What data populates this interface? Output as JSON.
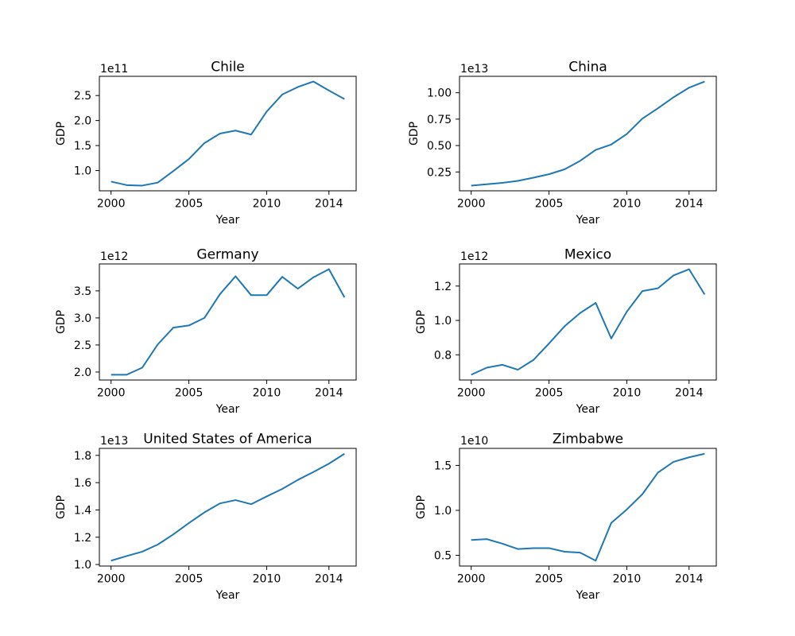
{
  "figure": {
    "background": "#ffffff",
    "line_color": "#1f77b4",
    "spine_color": "#000000",
    "text_color": "#000000",
    "grid": "off",
    "legend": "none",
    "rows": 3,
    "cols": 2
  },
  "chart_data": [
    {
      "type": "line",
      "title": "Chile",
      "xlabel": "Year",
      "ylabel": "GDP",
      "y_offset_label": "1e11",
      "row": 0,
      "col": 0,
      "x": [
        2000,
        2001,
        2002,
        2003,
        2004,
        2005,
        2006,
        2007,
        2008,
        2009,
        2010,
        2011,
        2012,
        2013,
        2014,
        2015
      ],
      "values": [
        0.78,
        0.71,
        0.7,
        0.76,
        0.99,
        1.23,
        1.55,
        1.74,
        1.8,
        1.72,
        2.18,
        2.52,
        2.67,
        2.78,
        2.6,
        2.43
      ],
      "xlim": [
        1999.25,
        2015.75
      ],
      "ylim": [
        0.596,
        2.884
      ],
      "x_ticks": [
        2000,
        2005,
        2010,
        2014
      ],
      "x_tick_labels": [
        "2000",
        "2005",
        "2010",
        "2014"
      ],
      "y_ticks": [
        1.0,
        1.5,
        2.0,
        2.5
      ],
      "y_tick_labels": [
        "1.0",
        "1.5",
        "2.0",
        "2.5"
      ]
    },
    {
      "type": "line",
      "title": "China",
      "xlabel": "Year",
      "ylabel": "GDP",
      "y_offset_label": "1e13",
      "row": 0,
      "col": 1,
      "x": [
        2000,
        2001,
        2002,
        2003,
        2004,
        2005,
        2006,
        2007,
        2008,
        2009,
        2010,
        2011,
        2012,
        2013,
        2014,
        2015
      ],
      "values": [
        0.121,
        0.134,
        0.147,
        0.166,
        0.196,
        0.229,
        0.275,
        0.355,
        0.459,
        0.51,
        0.609,
        0.755,
        0.853,
        0.957,
        1.048,
        1.106
      ],
      "xlim": [
        1999.25,
        2015.75
      ],
      "ylim": [
        0.0718,
        1.1553
      ],
      "x_ticks": [
        2000,
        2005,
        2010,
        2014
      ],
      "x_tick_labels": [
        "2000",
        "2005",
        "2010",
        "2014"
      ],
      "y_ticks": [
        0.25,
        0.5,
        0.75,
        1.0
      ],
      "y_tick_labels": [
        "0.25",
        "0.50",
        "0.75",
        "1.00"
      ]
    },
    {
      "type": "line",
      "title": "Germany",
      "xlabel": "Year",
      "ylabel": "GDP",
      "y_offset_label": "1e12",
      "row": 1,
      "col": 0,
      "x": [
        2000,
        2001,
        2002,
        2003,
        2004,
        2005,
        2006,
        2007,
        2008,
        2009,
        2010,
        2011,
        2012,
        2013,
        2014,
        2015
      ],
      "values": [
        1.95,
        1.95,
        2.08,
        2.51,
        2.82,
        2.86,
        3.0,
        3.44,
        3.77,
        3.42,
        3.42,
        3.76,
        3.54,
        3.75,
        3.9,
        3.38
      ],
      "xlim": [
        1999.25,
        2015.75
      ],
      "ylim": [
        1.8525,
        3.9975
      ],
      "x_ticks": [
        2000,
        2005,
        2010,
        2014
      ],
      "x_tick_labels": [
        "2000",
        "2005",
        "2010",
        "2014"
      ],
      "y_ticks": [
        2.0,
        2.5,
        3.0,
        3.5
      ],
      "y_tick_labels": [
        "2.0",
        "2.5",
        "3.0",
        "3.5"
      ]
    },
    {
      "type": "line",
      "title": "Mexico",
      "xlabel": "Year",
      "ylabel": "GDP",
      "y_offset_label": "1e12",
      "row": 1,
      "col": 1,
      "x": [
        2000,
        2001,
        2002,
        2003,
        2004,
        2005,
        2006,
        2007,
        2008,
        2009,
        2010,
        2011,
        2012,
        2013,
        2014,
        2015
      ],
      "values": [
        0.684,
        0.725,
        0.742,
        0.713,
        0.77,
        0.866,
        0.966,
        1.043,
        1.102,
        0.895,
        1.051,
        1.171,
        1.187,
        1.262,
        1.298,
        1.151
      ],
      "xlim": [
        1999.25,
        2015.75
      ],
      "ylim": [
        0.6533,
        1.3287
      ],
      "x_ticks": [
        2000,
        2005,
        2010,
        2014
      ],
      "x_tick_labels": [
        "2000",
        "2005",
        "2010",
        "2014"
      ],
      "y_ticks": [
        0.8,
        1.0,
        1.2
      ],
      "y_tick_labels": [
        "0.8",
        "1.0",
        "1.2"
      ]
    },
    {
      "type": "line",
      "title": "United States of America",
      "xlabel": "Year",
      "ylabel": "GDP",
      "y_offset_label": "1e13",
      "row": 2,
      "col": 0,
      "x": [
        2000,
        2001,
        2002,
        2003,
        2004,
        2005,
        2006,
        2007,
        2008,
        2009,
        2010,
        2011,
        2012,
        2013,
        2014,
        2015
      ],
      "values": [
        1.028,
        1.062,
        1.094,
        1.146,
        1.221,
        1.304,
        1.382,
        1.448,
        1.472,
        1.442,
        1.499,
        1.554,
        1.62,
        1.678,
        1.739,
        1.812
      ],
      "xlim": [
        1999.25,
        2015.75
      ],
      "ylim": [
        0.9888,
        1.8512
      ],
      "x_ticks": [
        2000,
        2005,
        2010,
        2014
      ],
      "x_tick_labels": [
        "2000",
        "2005",
        "2010",
        "2014"
      ],
      "y_ticks": [
        1.0,
        1.2,
        1.4,
        1.6,
        1.8
      ],
      "y_tick_labels": [
        "1.0",
        "1.2",
        "1.4",
        "1.6",
        "1.8"
      ]
    },
    {
      "type": "line",
      "title": "Zimbabwe",
      "xlabel": "Year",
      "ylabel": "GDP",
      "y_offset_label": "1e10",
      "row": 2,
      "col": 1,
      "x": [
        2000,
        2001,
        2002,
        2003,
        2004,
        2005,
        2006,
        2007,
        2008,
        2009,
        2010,
        2011,
        2012,
        2013,
        2014,
        2015
      ],
      "values": [
        0.67,
        0.68,
        0.63,
        0.57,
        0.58,
        0.58,
        0.54,
        0.53,
        0.44,
        0.86,
        1.01,
        1.18,
        1.42,
        1.54,
        1.59,
        1.63
      ],
      "xlim": [
        1999.25,
        2015.75
      ],
      "ylim": [
        0.3805,
        1.6895
      ],
      "x_ticks": [
        2000,
        2005,
        2010,
        2014
      ],
      "x_tick_labels": [
        "2000",
        "2005",
        "2010",
        "2014"
      ],
      "y_ticks": [
        0.5,
        1.0,
        1.5
      ],
      "y_tick_labels": [
        "0.5",
        "1.0",
        "1.5"
      ]
    }
  ]
}
